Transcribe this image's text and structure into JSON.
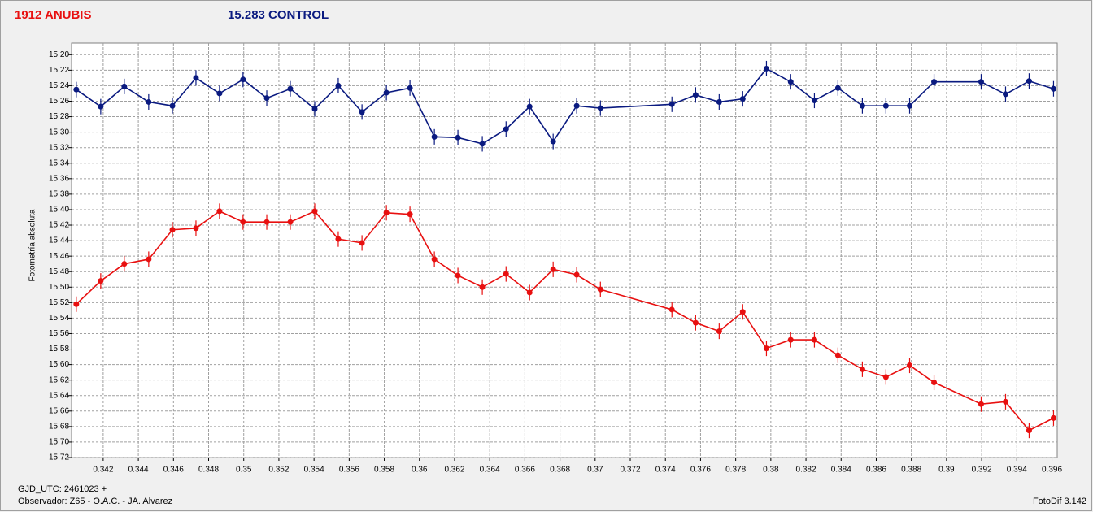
{
  "chart_data": {
    "type": "line",
    "y_label": "Fotometría absoluta",
    "footer_left_1": "GJD_UTC: 2461023 +",
    "footer_left_2": "Observador: Z65 - O.A.C. - JA. Alvarez",
    "footer_right": "FotoDif 3.142",
    "x": [
      0.34047,
      0.34186,
      0.3432,
      0.34459,
      0.34594,
      0.34728,
      0.34862,
      0.34996,
      0.35131,
      0.35265,
      0.35404,
      0.35538,
      0.35673,
      0.35812,
      0.35946,
      0.36085,
      0.36219,
      0.36358,
      0.36493,
      0.36627,
      0.36761,
      0.36895,
      0.3703,
      0.37437,
      0.37572,
      0.37706,
      0.3784,
      0.37975,
      0.38113,
      0.38248,
      0.38382,
      0.38521,
      0.38655,
      0.3879,
      0.38929,
      0.39197,
      0.39336,
      0.3947,
      0.39609
    ],
    "series": [
      {
        "name": "1912 ANUBIS",
        "color": "#e81010",
        "error_bar": 0.01,
        "values": [
          15.522,
          15.492,
          15.47,
          15.464,
          15.426,
          15.424,
          15.402,
          15.416,
          15.416,
          15.416,
          15.402,
          15.438,
          15.443,
          15.404,
          15.406,
          15.464,
          15.485,
          15.5,
          15.483,
          15.507,
          15.477,
          15.484,
          15.503,
          15.529,
          15.546,
          15.557,
          15.532,
          15.579,
          15.568,
          15.568,
          15.588,
          15.606,
          15.616,
          15.601,
          15.623,
          15.651,
          15.648,
          15.685,
          15.669
        ]
      },
      {
        "name": "15.283 CONTROL",
        "color": "#0a1a80",
        "error_bar": 0.01,
        "values": [
          15.245,
          15.267,
          15.241,
          15.261,
          15.266,
          15.23,
          15.25,
          15.232,
          15.256,
          15.244,
          15.27,
          15.24,
          15.274,
          15.249,
          15.243,
          15.306,
          15.307,
          15.315,
          15.296,
          15.267,
          15.312,
          15.266,
          15.269,
          15.264,
          15.252,
          15.261,
          15.257,
          15.218,
          15.235,
          15.259,
          15.243,
          15.266,
          15.266,
          15.266,
          15.235,
          15.235,
          15.251,
          15.234,
          15.244
        ]
      }
    ],
    "xlim": [
      0.3402,
      0.3963
    ],
    "xticks": [
      0.342,
      0.344,
      0.346,
      0.348,
      0.35,
      0.352,
      0.354,
      0.356,
      0.358,
      0.36,
      0.362,
      0.364,
      0.366,
      0.368,
      0.37,
      0.372,
      0.374,
      0.376,
      0.378,
      0.38,
      0.382,
      0.384,
      0.386,
      0.388,
      0.39,
      0.392,
      0.394,
      0.396
    ],
    "ylim": [
      15.72,
      15.185
    ],
    "yticks": [
      {
        "value": 15.2,
        "label": "15.20"
      },
      15.22,
      15.24,
      15.26,
      15.28,
      {
        "value": 15.3,
        "label": "15.30"
      },
      15.32,
      15.34,
      15.36,
      15.38,
      {
        "value": 15.4,
        "label": "15.40"
      },
      15.42,
      15.44,
      15.46,
      15.48,
      {
        "value": 15.5,
        "label": "15.50"
      },
      15.52,
      15.54,
      15.56,
      15.58,
      {
        "value": 15.6,
        "label": "15.60"
      },
      15.62,
      15.64,
      15.66,
      15.68,
      {
        "value": 15.7,
        "label": "15.70"
      },
      15.72
    ],
    "grid": true
  }
}
